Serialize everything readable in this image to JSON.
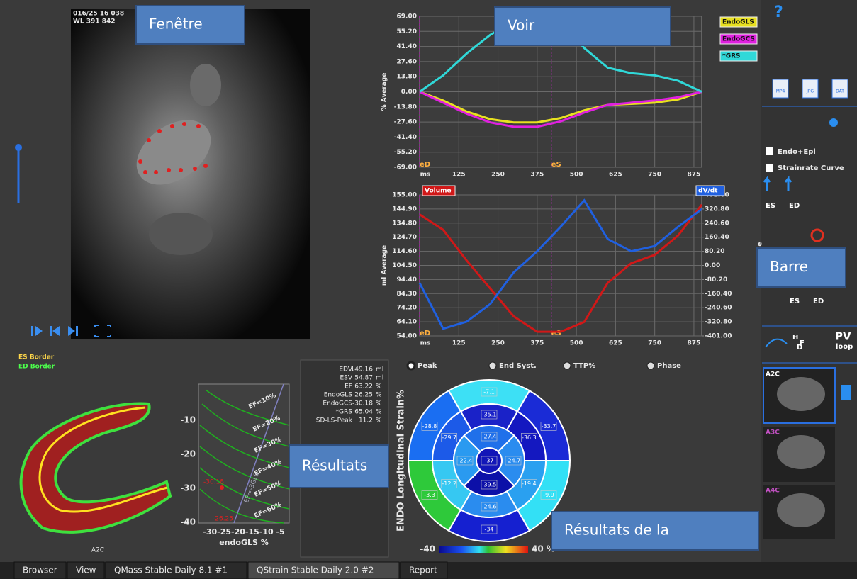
{
  "callouts": [
    "Fenêtre",
    "Voir",
    "Barre",
    "Résultats",
    "Résultats de la"
  ],
  "image": {
    "header": [
      "016/25 16 038",
      "WL 391 842"
    ],
    "view_label": "A2C",
    "borders": [
      {
        "label": "ES Border",
        "color": "#ffd84a"
      },
      {
        "label": "ED Border",
        "color": "#4cff4c"
      }
    ]
  },
  "strain_graph": {
    "y_label": "% Average",
    "x_unit": "ms",
    "xlim": [
      0,
      900
    ],
    "xticks": [
      125,
      250,
      375,
      500,
      625,
      750,
      875
    ],
    "ylim": [
      -69,
      69
    ],
    "yticks": [
      {
        "value": 69,
        "label": "69.00"
      },
      {
        "value": 55.2,
        "label": "55.20"
      },
      {
        "value": 41.4,
        "label": "41.40"
      },
      {
        "value": 27.6,
        "label": "27.60"
      },
      {
        "value": 13.8,
        "label": "13.80"
      },
      {
        "value": 0,
        "label": "0.00"
      },
      {
        "value": -13.8,
        "label": "-13.80"
      },
      {
        "value": -27.6,
        "label": "-27.60"
      },
      {
        "value": -41.4,
        "label": "-41.40"
      },
      {
        "value": -55.2,
        "label": "-55.20"
      },
      {
        "value": -69,
        "label": "-69.00"
      }
    ],
    "x": [
      0,
      75,
      150,
      225,
      300,
      375,
      450,
      525,
      600,
      675,
      750,
      825,
      900
    ],
    "series": [
      {
        "name": "EndoGLS",
        "color": "#e8e020",
        "values": [
          0,
          -8,
          -18,
          -25,
          -28,
          -28,
          -24,
          -17,
          -12,
          -11,
          -10,
          -7,
          0
        ]
      },
      {
        "name": "EndoGCS",
        "color": "#e020e0",
        "values": [
          0,
          -10,
          -20,
          -28,
          -32,
          -32,
          -27,
          -19,
          -12,
          -10,
          -8,
          -5,
          0
        ]
      },
      {
        "name": "*GRS",
        "color": "#30d8d8",
        "values": [
          0,
          15,
          35,
          52,
          64,
          69,
          65,
          40,
          22,
          17,
          15,
          10,
          0
        ]
      }
    ],
    "markers": [
      {
        "label": "eD",
        "x": 0
      },
      {
        "label": "eS",
        "x": 420
      }
    ]
  },
  "volume_graph": {
    "y_label": "ml Average",
    "y2_label": "ml/s Average",
    "x_unit": "ms",
    "xlim": [
      0,
      900
    ],
    "xticks": [
      125,
      250,
      375,
      500,
      625,
      750,
      875
    ],
    "ylim": [
      54,
      155
    ],
    "yticks": [
      {
        "value": 155,
        "label": "155.00"
      },
      {
        "value": 144.9,
        "label": "144.90"
      },
      {
        "value": 134.8,
        "label": "134.80"
      },
      {
        "value": 124.7,
        "label": "124.70"
      },
      {
        "value": 114.6,
        "label": "114.60"
      },
      {
        "value": 104.5,
        "label": "104.50"
      },
      {
        "value": 94.4,
        "label": "94.40"
      },
      {
        "value": 84.3,
        "label": "84.30"
      },
      {
        "value": 74.2,
        "label": "74.20"
      },
      {
        "value": 64.1,
        "label": "64.10"
      },
      {
        "value": 54,
        "label": "54.00"
      }
    ],
    "y2lim": [
      -401,
      401
    ],
    "y2ticks": [
      {
        "value": 401,
        "label": "401.00"
      },
      {
        "value": 320.8,
        "label": "320.80"
      },
      {
        "value": 240.6,
        "label": "240.60"
      },
      {
        "value": 160.4,
        "label": "160.40"
      },
      {
        "value": 80.2,
        "label": "80.20"
      },
      {
        "value": 0,
        "label": "0.00"
      },
      {
        "value": -80.2,
        "label": "-80.20"
      },
      {
        "value": -160.4,
        "label": "-160.40"
      },
      {
        "value": -240.6,
        "label": "-240.60"
      },
      {
        "value": -320.8,
        "label": "-320.80"
      },
      {
        "value": -401,
        "label": "-401.00"
      }
    ],
    "x": [
      0,
      75,
      150,
      225,
      300,
      375,
      450,
      525,
      600,
      675,
      750,
      825,
      900
    ],
    "series": [
      {
        "name": "Volume",
        "color": "#d01818",
        "values": [
          141,
          130,
          108,
          88,
          68,
          57,
          57,
          64,
          92,
          106,
          112,
          126,
          148
        ]
      },
      {
        "name": "dV/dt",
        "color": "#2060e0",
        "axis": "y2",
        "values": [
          -100,
          -360,
          -320,
          -220,
          -40,
          80,
          220,
          370,
          150,
          80,
          110,
          220,
          320
        ]
      }
    ],
    "markers": [
      {
        "label": "eD",
        "x": 0
      },
      {
        "label": "eS",
        "x": 420
      }
    ]
  },
  "radio_options": [
    "Peak",
    "End Syst.",
    "TTP%",
    "Phase"
  ],
  "results": [
    [
      "EDV",
      "149.16",
      "ml"
    ],
    [
      "ESV",
      "54.87",
      "ml"
    ],
    [
      "EF",
      "63.22",
      "%"
    ],
    [
      "EndoGLS",
      "-26.25",
      "%"
    ],
    [
      "EndoGCS",
      "-30.18",
      "%"
    ],
    [
      "*GRS",
      "65.04",
      "%"
    ],
    [
      "SD-LS-Peak",
      "11.2",
      "%"
    ]
  ],
  "bullseye": {
    "title": "ENDO Longitudinal Strain%",
    "segments": [
      {
        "value": -7.1,
        "color": "#3de0f5"
      },
      {
        "value": -33.7,
        "color": "#1a2bd6"
      },
      {
        "value": -9.9,
        "color": "#33e0f5"
      },
      {
        "value": -34.0,
        "color": "#1520d0"
      },
      {
        "value": -3.3,
        "color": "#2ec93a"
      },
      {
        "value": -28.8,
        "color": "#1a6ef2"
      },
      {
        "value": -35.1,
        "color": "#1a22c8"
      },
      {
        "value": -36.3,
        "color": "#1418c0"
      },
      {
        "value": -19.4,
        "color": "#2aa0f0"
      },
      {
        "value": -24.6,
        "color": "#2a8cef"
      },
      {
        "value": -12.2,
        "color": "#36c8f2"
      },
      {
        "value": -29.7,
        "color": "#1c5ae8"
      },
      {
        "value": -27.4,
        "color": "#2070ea"
      },
      {
        "value": -24.7,
        "color": "#2a8cef"
      },
      {
        "value": -39.5,
        "color": "#0c10a8"
      },
      {
        "value": -22.4,
        "color": "#2a9af0"
      },
      {
        "value": -37.0,
        "color": "#1216b8"
      }
    ],
    "scale_labels": [
      "-40",
      "40 %"
    ]
  },
  "nomogram": {
    "ylim": [
      -40,
      0
    ],
    "yticks": [
      -10,
      -20,
      -30,
      -40
    ],
    "x_ticks_text": "-30-25-20-15-10 -5",
    "x_label": "endoGLS %",
    "curve_labels": [
      "EF=10%",
      "EF=20%",
      "EF=30%",
      "EF=40%",
      "EF=50%",
      "EF=60%",
      "EF=-3GLS"
    ],
    "point_labels": [
      "-30.18",
      "-26.25"
    ]
  },
  "toolbar": {
    "file_buttons": [
      "MP4",
      "JPG",
      "DAT"
    ],
    "checkboxes": [
      "Endo+Epi",
      "Strainrate Curve"
    ],
    "icon_labels": [
      "ES",
      "ED",
      "ES",
      "ED",
      "H",
      "F",
      "D",
      "PV",
      "loop"
    ],
    "thumbnails": [
      "A2C",
      "A3C",
      "A4C"
    ]
  },
  "tabs": [
    "Browser",
    "View",
    "QMass Stable Daily 8.1 #1",
    "QStrain Stable Daily 2.0 #2",
    "Report"
  ]
}
